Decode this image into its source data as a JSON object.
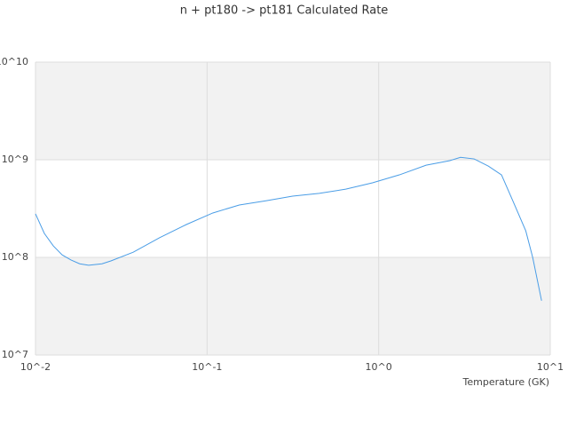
{
  "chart_data": {
    "type": "line",
    "title": "n + pt180 -> pt181 Calculated Rate",
    "x_label": "Temperature (GK)",
    "x_scale": "log",
    "y_scale": "log",
    "xlim": [
      0.01,
      10
    ],
    "ylim": [
      10000000.0,
      10000000000.0
    ],
    "xticks": [
      {
        "value": 0.01,
        "label": "10^-2"
      },
      {
        "value": 0.1,
        "label": "10^-1"
      },
      {
        "value": 1,
        "label": "10^0"
      },
      {
        "value": 10,
        "label": "10^1"
      }
    ],
    "yticks": [
      {
        "value": 10000000.0,
        "label": "10^7"
      },
      {
        "value": 100000000.0,
        "label": "10^8"
      },
      {
        "value": 1000000000.0,
        "label": "10^9"
      },
      {
        "value": 10000000000.0,
        "label": "10^10"
      }
    ],
    "band_color": "#f2f2f2",
    "x": [
      0.01,
      0.01126,
      0.0127,
      0.0143,
      0.0161,
      0.0181,
      0.0204,
      0.0244,
      0.0275,
      0.0371,
      0.0529,
      0.0757,
      0.108,
      0.154,
      0.22,
      0.315,
      0.45,
      0.643,
      0.92,
      1.32,
      1.89,
      2.6,
      3.0,
      3.6,
      4.36,
      5.2,
      6.2,
      7.2,
      7.9,
      8.9
    ],
    "series": [
      {
        "color": "#4a9de6",
        "values": [
          279000000.0,
          176000000.0,
          131000000.0,
          106000000.0,
          94000000.0,
          86000000.0,
          83000000.0,
          86000000.0,
          92000000.0,
          113000000.0,
          159000000.0,
          217000000.0,
          285000000.0,
          344000000.0,
          380000000.0,
          424000000.0,
          452000000.0,
          500000000.0,
          580000000.0,
          700000000.0,
          880000000.0,
          980000000.0,
          1060000000.0,
          1020000000.0,
          860000000.0,
          700000000.0,
          344000000.0,
          187000000.0,
          100000000.0,
          36000000.0
        ]
      }
    ]
  }
}
